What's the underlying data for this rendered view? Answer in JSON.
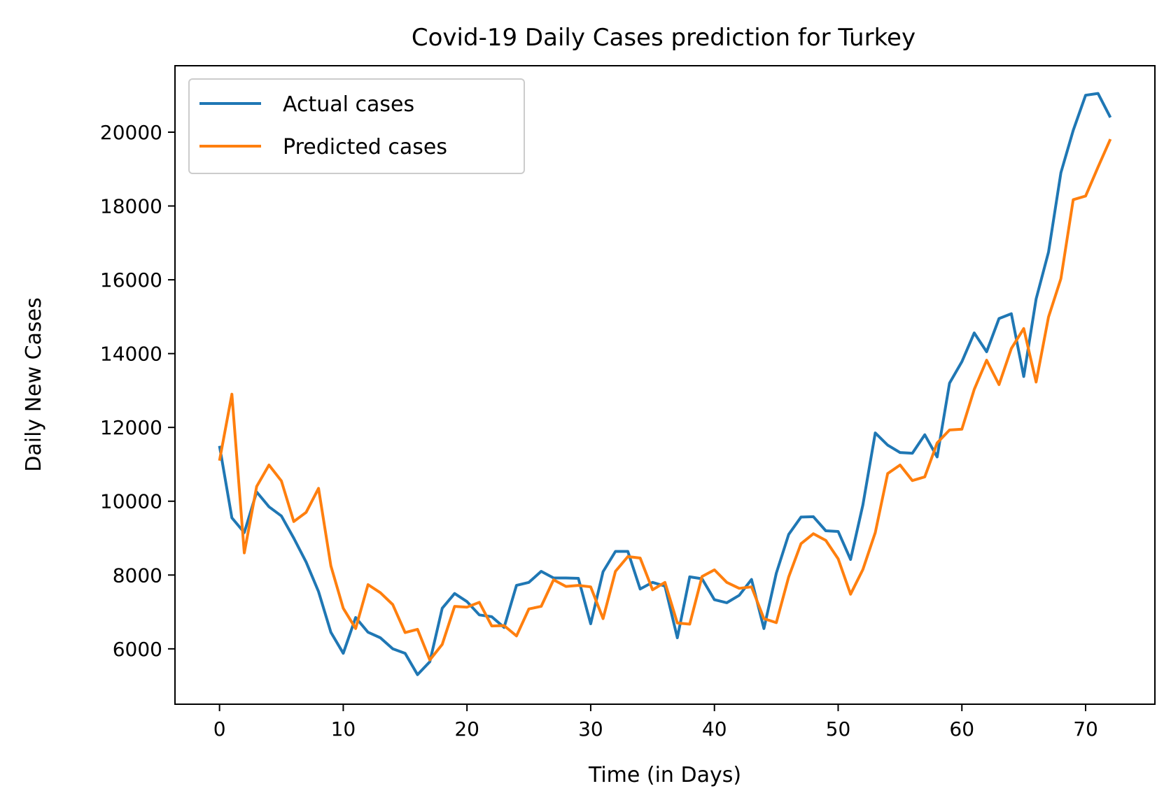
{
  "chart_data": {
    "type": "line",
    "title": "Covid-19 Daily Cases prediction for Turkey",
    "xlabel": "Time (in Days)",
    "ylabel": "Daily New Cases",
    "xlim": [
      -3.6,
      75.6
    ],
    "ylim": [
      4500,
      21800
    ],
    "xticks": [
      0,
      10,
      20,
      30,
      40,
      50,
      60,
      70
    ],
    "yticks": [
      6000,
      8000,
      10000,
      12000,
      14000,
      16000,
      18000,
      20000
    ],
    "grid": false,
    "legend_position": "upper-left",
    "x": [
      0,
      1,
      2,
      3,
      4,
      5,
      6,
      7,
      8,
      9,
      10,
      11,
      12,
      13,
      14,
      15,
      16,
      17,
      18,
      19,
      20,
      21,
      22,
      23,
      24,
      25,
      26,
      27,
      28,
      29,
      30,
      31,
      32,
      33,
      34,
      35,
      36,
      37,
      38,
      39,
      40,
      41,
      42,
      43,
      44,
      45,
      46,
      47,
      48,
      49,
      50,
      51,
      52,
      53,
      54,
      55,
      56,
      57,
      58,
      59,
      60,
      61,
      62,
      63,
      64,
      65,
      66,
      67,
      68,
      69,
      70,
      71,
      72
    ],
    "series": [
      {
        "name": "Actual cases",
        "color": "#1f77b4",
        "values": [
          11500,
          9550,
          9150,
          10250,
          9850,
          9600,
          9000,
          8350,
          7550,
          6450,
          5880,
          6850,
          6450,
          6300,
          6000,
          5880,
          5300,
          5650,
          7100,
          7500,
          7280,
          6920,
          6870,
          6580,
          7720,
          7800,
          8100,
          7920,
          7920,
          7910,
          6680,
          8090,
          8640,
          8640,
          7620,
          7800,
          7700,
          6300,
          7950,
          7900,
          7330,
          7250,
          7450,
          7880,
          6550,
          8050,
          9100,
          9570,
          9580,
          9200,
          9180,
          8420,
          9900,
          11850,
          11520,
          11320,
          11300,
          11800,
          11200,
          13200,
          13780,
          14560,
          14050,
          14950,
          15080,
          13380,
          15480,
          16750,
          18900,
          20050,
          21000,
          21050,
          20400
        ]
      },
      {
        "name": "Predicted cases",
        "color": "#ff7f0e",
        "values": [
          11100,
          12900,
          8600,
          10400,
          10980,
          10550,
          9450,
          9700,
          10350,
          8250,
          7100,
          6550,
          7740,
          7520,
          7200,
          6440,
          6530,
          5700,
          6120,
          7150,
          7130,
          7260,
          6620,
          6630,
          6350,
          7080,
          7150,
          7870,
          7690,
          7720,
          7680,
          6820,
          8100,
          8500,
          8460,
          7600,
          7800,
          6700,
          6670,
          7960,
          8140,
          7800,
          7640,
          7680,
          6820,
          6710,
          7950,
          8850,
          9120,
          8940,
          8440,
          7480,
          8150,
          9150,
          10750,
          10980,
          10560,
          10660,
          11580,
          11930,
          11950,
          13030,
          13820,
          13160,
          14140,
          14680,
          13230,
          14990,
          16030,
          18170,
          18270,
          19050,
          19810
        ]
      }
    ]
  }
}
